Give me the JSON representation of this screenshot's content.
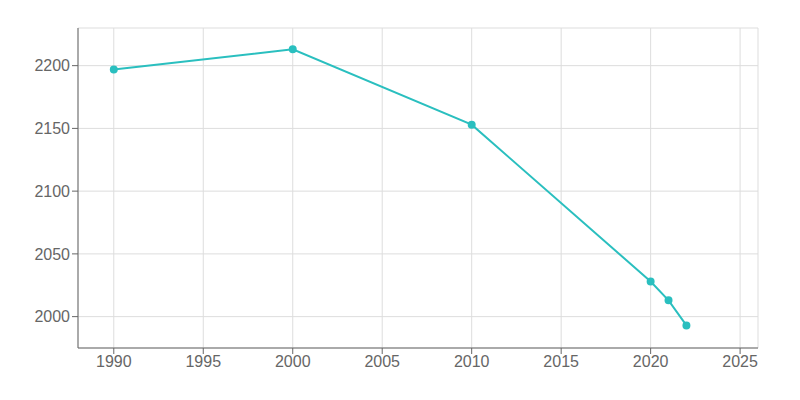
{
  "chart_data": {
    "type": "line",
    "x": [
      1990,
      2000,
      2010,
      2020,
      2021,
      2022
    ],
    "values": [
      2197,
      2213,
      2153,
      2028,
      2013,
      1993
    ],
    "color": "#2abfbf",
    "marker": "circle",
    "xlim": [
      1988,
      2026
    ],
    "ylim": [
      1975,
      2230
    ],
    "xticks": [
      1990,
      1995,
      2000,
      2005,
      2010,
      2015,
      2020,
      2025
    ],
    "yticks": [
      2000,
      2050,
      2100,
      2150,
      2200
    ],
    "grid": true
  }
}
